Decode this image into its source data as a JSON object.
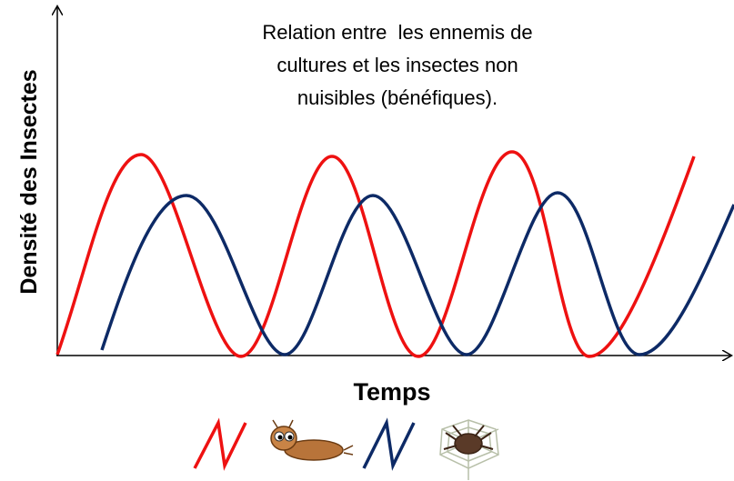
{
  "header": {
    "title_lines": [
      "Relation entre  les ennemis de",
      "cultures et les insectes non",
      "nuisibles (bénéfiques)."
    ]
  },
  "axes": {
    "y_label": "Densité des Insectes",
    "x_label": "Temps"
  }
}
